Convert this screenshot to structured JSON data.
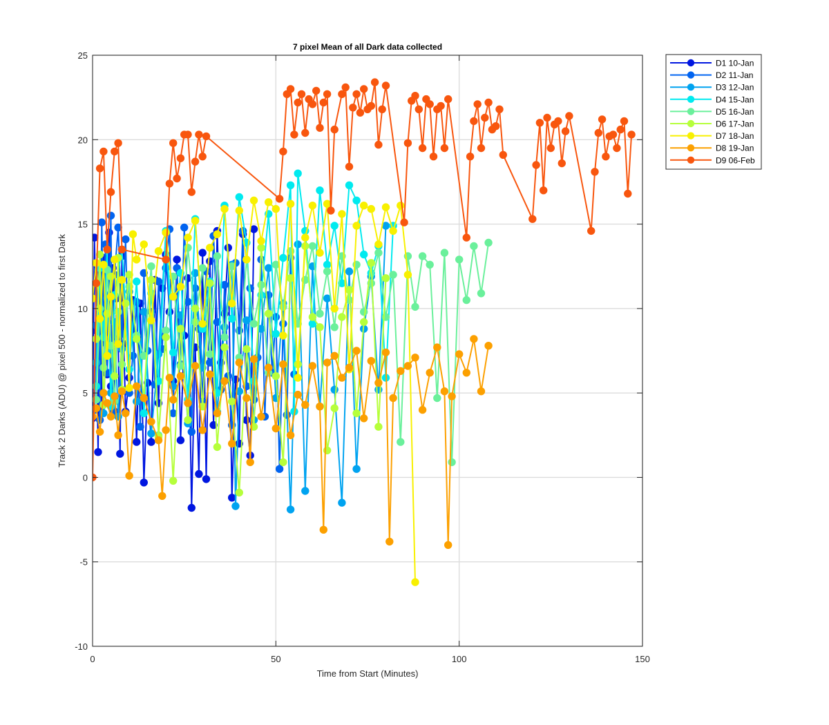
{
  "chart_data": {
    "type": "line",
    "title": "7 pixel Mean of all Dark data collected",
    "xlabel": "Time from Start (Minutes)",
    "ylabel": "Track 2 Darks (ADU) @ pixel 500 - normalized to first Dark",
    "xlim": [
      0,
      150
    ],
    "ylim": [
      -10,
      25
    ],
    "xticks": [
      0,
      50,
      100,
      150
    ],
    "yticks": [
      -10,
      -5,
      0,
      5,
      10,
      15,
      20,
      25
    ],
    "grid": true,
    "legend_position": "top-right-outside",
    "marker": "circle",
    "series": [
      {
        "name": "D1 10-Jan",
        "color": "#0016e0",
        "x": [
          0,
          0.5,
          1,
          1.5,
          2,
          2.5,
          3,
          3.5,
          4,
          4.5,
          5,
          5.5,
          6,
          6.5,
          7,
          7.5,
          8,
          8.5,
          9,
          10,
          11,
          12,
          13,
          14,
          15,
          16,
          17,
          18,
          19,
          20,
          21,
          22,
          23,
          24,
          25,
          26,
          27,
          28,
          29,
          30,
          31,
          32,
          33,
          34,
          35,
          36,
          37,
          38,
          39,
          40,
          41,
          42,
          43,
          44
        ],
        "y": [
          3.5,
          14.2,
          8.7,
          1.5,
          11.8,
          4.2,
          13.0,
          9.8,
          6.1,
          14.5,
          5.4,
          12.4,
          3.9,
          10.6,
          8.2,
          1.4,
          13.1,
          7.9,
          3.9,
          5.9,
          10.5,
          2.1,
          10.3,
          -0.3,
          5.6,
          2.1,
          11.7,
          4.4,
          11.2,
          13.2,
          9.8,
          5.7,
          12.9,
          2.2,
          8.4,
          11.8,
          -1.8,
          7.7,
          0.2,
          13.3,
          -0.1,
          12.8,
          3.1,
          14.6,
          6.8,
          9.7,
          13.6,
          -1.2,
          5.8,
          2.0,
          14.4,
          3.4,
          1.3,
          14.7
        ]
      },
      {
        "name": "D2 11-Jan",
        "color": "#0063f0",
        "x": [
          0.5,
          1,
          1.5,
          2,
          2.5,
          3,
          3.5,
          4,
          4.5,
          5,
          5.5,
          6,
          7,
          8,
          9,
          10,
          11,
          12,
          13,
          14,
          15,
          16,
          17,
          18,
          19,
          20,
          21,
          22,
          23,
          24,
          25,
          26,
          27,
          28,
          29,
          30,
          31,
          32,
          33,
          34,
          35,
          36,
          37,
          38,
          39,
          40,
          41,
          42,
          43,
          44,
          45,
          46,
          47,
          48,
          49,
          50,
          51,
          52,
          53,
          54,
          55
        ],
        "y": [
          4.0,
          9.0,
          12.3,
          3.4,
          15.1,
          8.0,
          13.8,
          6.2,
          10.8,
          15.5,
          3.9,
          12.0,
          14.8,
          8.5,
          14.1,
          5.0,
          7.2,
          10.4,
          3.0,
          12.1,
          7.5,
          9.8,
          5.5,
          11.6,
          7.6,
          12.4,
          14.7,
          3.8,
          12.4,
          6.7,
          14.8,
          10.4,
          2.7,
          11.2,
          8.8,
          4.5,
          12.2,
          6.8,
          14.3,
          9.2,
          5.2,
          11.4,
          6.0,
          3.1,
          12.7,
          8.7,
          14.6,
          5.4,
          11.2,
          4.6,
          7.1,
          12.9,
          3.6,
          10.8,
          6.2,
          9.5,
          0.5,
          9.1,
          3.7,
          13.0,
          6.1
        ]
      },
      {
        "name": "D3 12-Jan",
        "color": "#00a3f0",
        "x": [
          1,
          2,
          3,
          4,
          5,
          6,
          7,
          8,
          10,
          12,
          14,
          16,
          18,
          20,
          22,
          24,
          26,
          28,
          30,
          32,
          34,
          36,
          38,
          39,
          40,
          42,
          44,
          46,
          48,
          50,
          52,
          54,
          56,
          58,
          60,
          62,
          64,
          66,
          68,
          70,
          72,
          74,
          76,
          78,
          80
        ],
        "y": [
          6.8,
          12.4,
          3.8,
          10.6,
          5.0,
          9.2,
          3.6,
          7.6,
          11.0,
          4.5,
          9.8,
          2.6,
          7.3,
          14.5,
          5.4,
          9.6,
          3.2,
          12.1,
          6.5,
          11.4,
          3.9,
          8.9,
          12.6,
          -1.7,
          5.1,
          9.3,
          3.4,
          8.8,
          12.4,
          4.7,
          10.3,
          -1.9,
          13.8,
          -0.8,
          12.5,
          4.2,
          10.6,
          5.2,
          -1.5,
          12.2,
          0.5,
          8.8,
          11.9,
          5.2,
          14.9
        ]
      },
      {
        "name": "D4 15-Jan",
        "color": "#00eaef",
        "x": [
          1,
          2,
          3,
          4,
          5,
          6,
          8,
          10,
          12,
          14,
          16,
          18,
          20,
          22,
          24,
          26,
          28,
          30,
          32,
          34,
          36,
          38,
          40,
          42,
          44,
          46,
          48,
          50,
          52,
          54,
          55,
          56,
          58,
          60,
          62,
          64,
          66,
          68,
          70,
          72,
          74,
          76,
          78,
          80,
          82
        ],
        "y": [
          5.4,
          12.4,
          8.3,
          13.5,
          4.2,
          10.8,
          13.5,
          6.4,
          11.6,
          3.8,
          10.9,
          5.7,
          14.6,
          7.4,
          12.1,
          4.6,
          15.3,
          8.8,
          11.6,
          5.0,
          16.1,
          9.4,
          16.6,
          13.9,
          5.7,
          10.8,
          15.6,
          8.5,
          13.0,
          17.3,
          3.9,
          18.0,
          14.6,
          9.1,
          17.0,
          12.6,
          14.9,
          11.5,
          17.3,
          16.4,
          13.2,
          12.1,
          13.7,
          5.9,
          14.9
        ]
      },
      {
        "name": "D5 16-Jan",
        "color": "#6af09b",
        "x": [
          1,
          2,
          3,
          4,
          5,
          6,
          7,
          8,
          10,
          12,
          14,
          16,
          18,
          20,
          22,
          24,
          26,
          28,
          30,
          32,
          34,
          36,
          38,
          40,
          42,
          44,
          46,
          48,
          50,
          52,
          54,
          56,
          58,
          60,
          62,
          64,
          66,
          68,
          70,
          72,
          74,
          76,
          78,
          80,
          82,
          84,
          86,
          88,
          90,
          92,
          94,
          96,
          98,
          100,
          102,
          104,
          106,
          108
        ],
        "y": [
          4.6,
          10.0,
          6.5,
          12.3,
          7.8,
          4.5,
          9.8,
          6.7,
          11.3,
          8.4,
          7.2,
          12.5,
          2.5,
          8.7,
          11.9,
          6.6,
          13.6,
          9.2,
          12.4,
          7.3,
          13.1,
          8.3,
          12.5,
          7.1,
          12.9,
          9.1,
          11.4,
          6.2,
          12.6,
          10.1,
          13.4,
          9.1,
          11.7,
          13.7,
          9.7,
          12.2,
          8.9,
          13.1,
          10.5,
          12.6,
          9.8,
          11.5,
          13.3,
          9.5,
          12.0,
          2.1,
          13.1,
          10.1,
          13.1,
          12.6,
          4.7,
          13.3,
          0.9,
          12.9,
          10.5,
          13.7,
          10.9,
          13.9
        ]
      },
      {
        "name": "D6 17-Jan",
        "color": "#b6ff3b",
        "x": [
          1,
          2,
          3,
          4,
          5,
          6,
          7,
          8,
          9,
          10,
          12,
          14,
          16,
          18,
          20,
          22,
          24,
          26,
          28,
          30,
          32,
          34,
          36,
          38,
          40,
          42,
          44,
          46,
          48,
          50,
          52,
          54,
          56,
          58,
          60,
          62,
          64,
          66,
          68,
          70,
          72,
          74,
          76,
          78,
          80
        ],
        "y": [
          8.2,
          13.2,
          4.3,
          9.7,
          11.9,
          6.0,
          13.0,
          5.2,
          10.3,
          12.0,
          8.2,
          4.7,
          11.7,
          2.4,
          8.3,
          -0.2,
          8.8,
          3.4,
          10.0,
          4.2,
          11.5,
          1.8,
          7.7,
          4.5,
          -0.9,
          7.6,
          3.0,
          13.6,
          9.7,
          6.0,
          0.9,
          11.8,
          6.7,
          13.7,
          9.5,
          8.9,
          1.6,
          4.1,
          9.5,
          11.1,
          3.8,
          9.2,
          12.7,
          3.0,
          11.8
        ]
      },
      {
        "name": "D7 18-Jan",
        "color": "#f8f000",
        "x": [
          0,
          1,
          2,
          3,
          4,
          5,
          6,
          7,
          8,
          10,
          11,
          12,
          14,
          16,
          18,
          20,
          22,
          24,
          26,
          28,
          30,
          32,
          34,
          36,
          38,
          40,
          42,
          44,
          46,
          48,
          50,
          52,
          54,
          56,
          58,
          60,
          62,
          64,
          66,
          68,
          70,
          72,
          74,
          76,
          78,
          80,
          82,
          84,
          86,
          88
        ],
        "y": [
          10.6,
          12.7,
          9.4,
          12.6,
          7.2,
          10.7,
          12.9,
          7.9,
          11.7,
          5.3,
          14.4,
          12.9,
          13.8,
          9.3,
          13.4,
          14.5,
          10.7,
          11.3,
          14.2,
          15.2,
          9.1,
          13.6,
          14.4,
          15.9,
          10.3,
          15.8,
          12.9,
          16.4,
          14.0,
          16.3,
          15.9,
          8.4,
          16.2,
          5.9,
          14.2,
          16.1,
          13.3,
          16.2,
          10.0,
          15.6,
          6.4,
          14.9,
          16.1,
          15.9,
          13.8,
          16.0,
          14.6,
          16.1,
          12.0,
          -6.2
        ]
      },
      {
        "name": "D8 19-Jan",
        "color": "#fca000",
        "x": [
          0,
          1,
          2,
          3,
          4,
          5,
          6,
          7,
          8,
          9,
          10,
          12,
          14,
          16,
          18,
          19,
          20,
          21,
          22,
          24,
          26,
          28,
          30,
          32,
          34,
          36,
          38,
          40,
          42,
          43,
          44,
          46,
          48,
          50,
          52,
          54,
          56,
          58,
          60,
          62,
          63,
          64,
          66,
          68,
          70,
          72,
          74,
          76,
          78,
          80,
          81,
          82,
          84,
          86,
          88,
          90,
          92,
          94,
          96,
          97,
          98,
          100,
          102,
          104,
          106,
          108
        ],
        "y": [
          3.6,
          4.1,
          2.7,
          5.0,
          4.4,
          3.6,
          4.8,
          2.5,
          5.1,
          3.8,
          0.1,
          5.4,
          4.7,
          3.3,
          2.2,
          -1.1,
          2.8,
          5.9,
          4.6,
          6.0,
          4.4,
          6.6,
          2.8,
          6.1,
          3.8,
          5.7,
          2.0,
          6.8,
          4.7,
          0.9,
          7.0,
          3.6,
          6.5,
          2.9,
          6.7,
          2.5,
          4.9,
          4.3,
          6.6,
          4.2,
          -3.1,
          6.8,
          7.2,
          5.9,
          6.5,
          7.5,
          3.5,
          6.9,
          5.6,
          7.4,
          -3.8,
          4.7,
          6.3,
          6.6,
          7.1,
          4.0,
          6.2,
          7.7,
          5.1,
          -4.0,
          4.8,
          7.3,
          6.2,
          8.2,
          5.1,
          7.8
        ]
      },
      {
        "name": "D9 06-Feb",
        "color": "#f8560e",
        "x": [
          0,
          1,
          2,
          3,
          4,
          5,
          6,
          7,
          8,
          20,
          21,
          22,
          23,
          24,
          25,
          26,
          27,
          28,
          29,
          30,
          31,
          51,
          52,
          53,
          54,
          55,
          56,
          57,
          58,
          59,
          60,
          61,
          62,
          63,
          64,
          65,
          66,
          68,
          69,
          70,
          71,
          72,
          73,
          74,
          75,
          76,
          77,
          78,
          79,
          80,
          85,
          86,
          87,
          88,
          89,
          90,
          91,
          92,
          93,
          94,
          95,
          96,
          97,
          102,
          103,
          104,
          105,
          106,
          107,
          108,
          109,
          110,
          111,
          112,
          120,
          121,
          122,
          123,
          124,
          125,
          126,
          127,
          128,
          129,
          130,
          136,
          137,
          138,
          139,
          140,
          141,
          142,
          143,
          144,
          145,
          146,
          147
        ],
        "y": [
          0,
          11.5,
          18.3,
          19.3,
          13.5,
          16.9,
          19.3,
          19.8,
          13.5,
          12.9,
          17.4,
          19.8,
          17.7,
          18.9,
          20.3,
          20.3,
          16.9,
          18.7,
          20.3,
          19.0,
          20.2,
          16.5,
          19.3,
          22.7,
          23.0,
          20.3,
          22.2,
          22.7,
          20.4,
          22.4,
          22.1,
          22.9,
          20.7,
          22.2,
          22.7,
          15.8,
          20.6,
          22.7,
          23.1,
          18.4,
          21.9,
          22.7,
          21.6,
          23.0,
          21.8,
          22.0,
          23.4,
          19.7,
          21.8,
          23.2,
          15.1,
          19.8,
          22.3,
          22.6,
          21.8,
          19.5,
          22.4,
          22.1,
          19.0,
          21.8,
          22.0,
          19.5,
          22.4,
          14.2,
          19.0,
          21.1,
          22.1,
          19.5,
          21.3,
          22.2,
          20.6,
          20.8,
          21.8,
          19.1,
          15.3,
          18.5,
          21.0,
          17.0,
          21.3,
          19.5,
          20.9,
          21.1,
          18.6,
          20.5,
          21.4,
          14.6,
          18.1,
          20.4,
          21.2,
          19.0,
          20.2,
          20.3,
          19.5,
          20.6,
          21.1,
          16.8,
          20.3
        ]
      }
    ]
  }
}
